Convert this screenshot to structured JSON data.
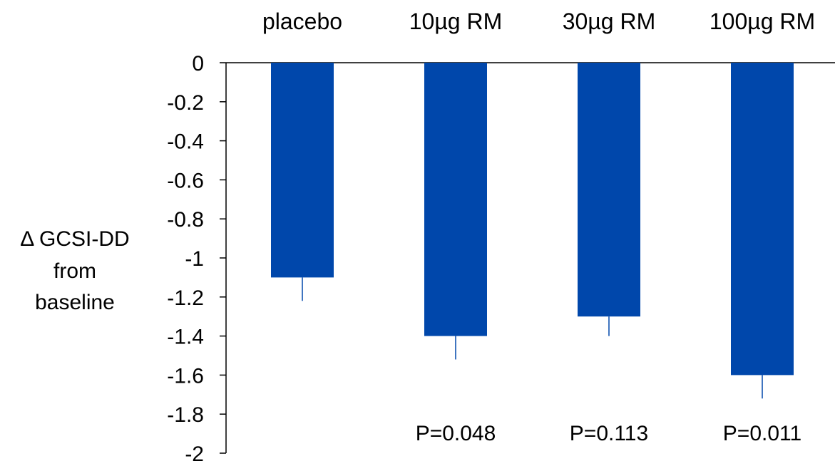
{
  "chart_data": {
    "type": "bar",
    "categories": [
      "placebo",
      "10µg RM",
      "30µg RM",
      "100µg RM"
    ],
    "values": [
      -1.1,
      -1.4,
      -1.3,
      -1.6
    ],
    "error_bars": [
      0.12,
      0.12,
      0.1,
      0.12
    ],
    "annotations": [
      "",
      "P=0.048",
      "P=0.113",
      "P=0.011"
    ],
    "title": "",
    "xlabel": "",
    "ylabel": "Δ GCSI-DD from baseline",
    "ylabel_lines": [
      "Δ GCSI-DD",
      "from",
      "baseline"
    ],
    "ylim": [
      -2,
      0
    ],
    "yticks": [
      0,
      -0.2,
      -0.4,
      -0.6,
      -0.8,
      -1,
      -1.2,
      -1.4,
      -1.6,
      -1.8,
      -2
    ],
    "ytick_labels": [
      "0",
      "-0.2",
      "-0.4",
      "-0.6",
      "-0.8",
      "-1",
      "-1.2",
      "-1.4",
      "-1.6",
      "-1.8",
      "-2"
    ],
    "grid": false,
    "legend": "none",
    "bar_color": "#0047AB",
    "axis_color": "#000000"
  }
}
